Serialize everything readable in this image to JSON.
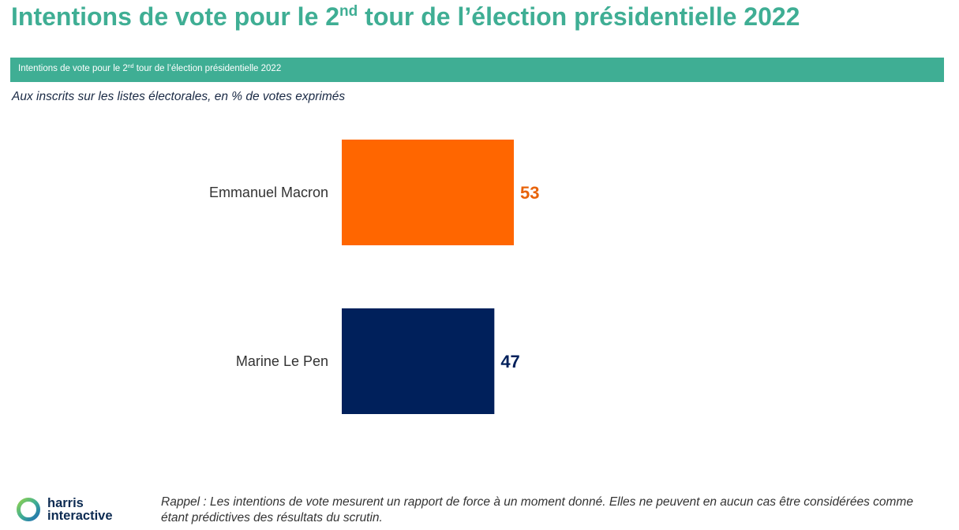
{
  "title": {
    "main": "Intentions de vote pour le 2",
    "sup": "nd",
    "rest": " tour de l’élection présidentielle 2022"
  },
  "banner": {
    "main": "Intentions de vote pour le 2",
    "sup": "nd",
    "rest": " tour de l’élection présidentielle 2022"
  },
  "subtitle": "Aux inscrits sur les listes électorales, en % de votes exprimés",
  "chart_data": {
    "type": "bar",
    "orientation": "horizontal",
    "categories": [
      "Emmanuel Macron",
      "Marine Le Pen"
    ],
    "values": [
      53,
      47
    ],
    "colors": [
      "#ff6600",
      "#00205b"
    ],
    "value_label_colors": [
      "#e8630a",
      "#00205b"
    ],
    "axis_visible": false,
    "grid": false
  },
  "footer": {
    "note_line1": "Rappel : Les intentions de vote mesurent un rapport de force à un moment donné. Elles ne peuvent en aucun cas être considérées comme",
    "note_line2": "étant prédictives des résultats du scrutin."
  },
  "logo": {
    "line1": "harris",
    "line2": "interactive",
    "colors": [
      "#8fd14f",
      "#3fae94",
      "#1f6fb2"
    ]
  }
}
